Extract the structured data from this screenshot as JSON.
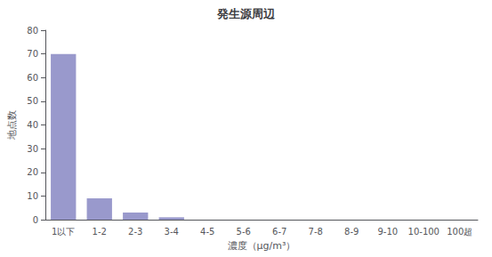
{
  "chart_data": {
    "type": "bar",
    "title": "発生源周辺",
    "xlabel": "濃度（μg/m³）",
    "ylabel": "地点数",
    "categories": [
      "1以下",
      "1-2",
      "2-3",
      "3-4",
      "4-5",
      "5-6",
      "6-7",
      "7-8",
      "8-9",
      "9-10",
      "10-100",
      "100超"
    ],
    "values": [
      70,
      9,
      3,
      1,
      0,
      0,
      0,
      0,
      0,
      0,
      0,
      0
    ],
    "color": "#9999cc",
    "ylim": [
      0,
      80
    ],
    "yticks": [
      0,
      10,
      20,
      30,
      40,
      50,
      60,
      70,
      80
    ],
    "grid": false
  }
}
